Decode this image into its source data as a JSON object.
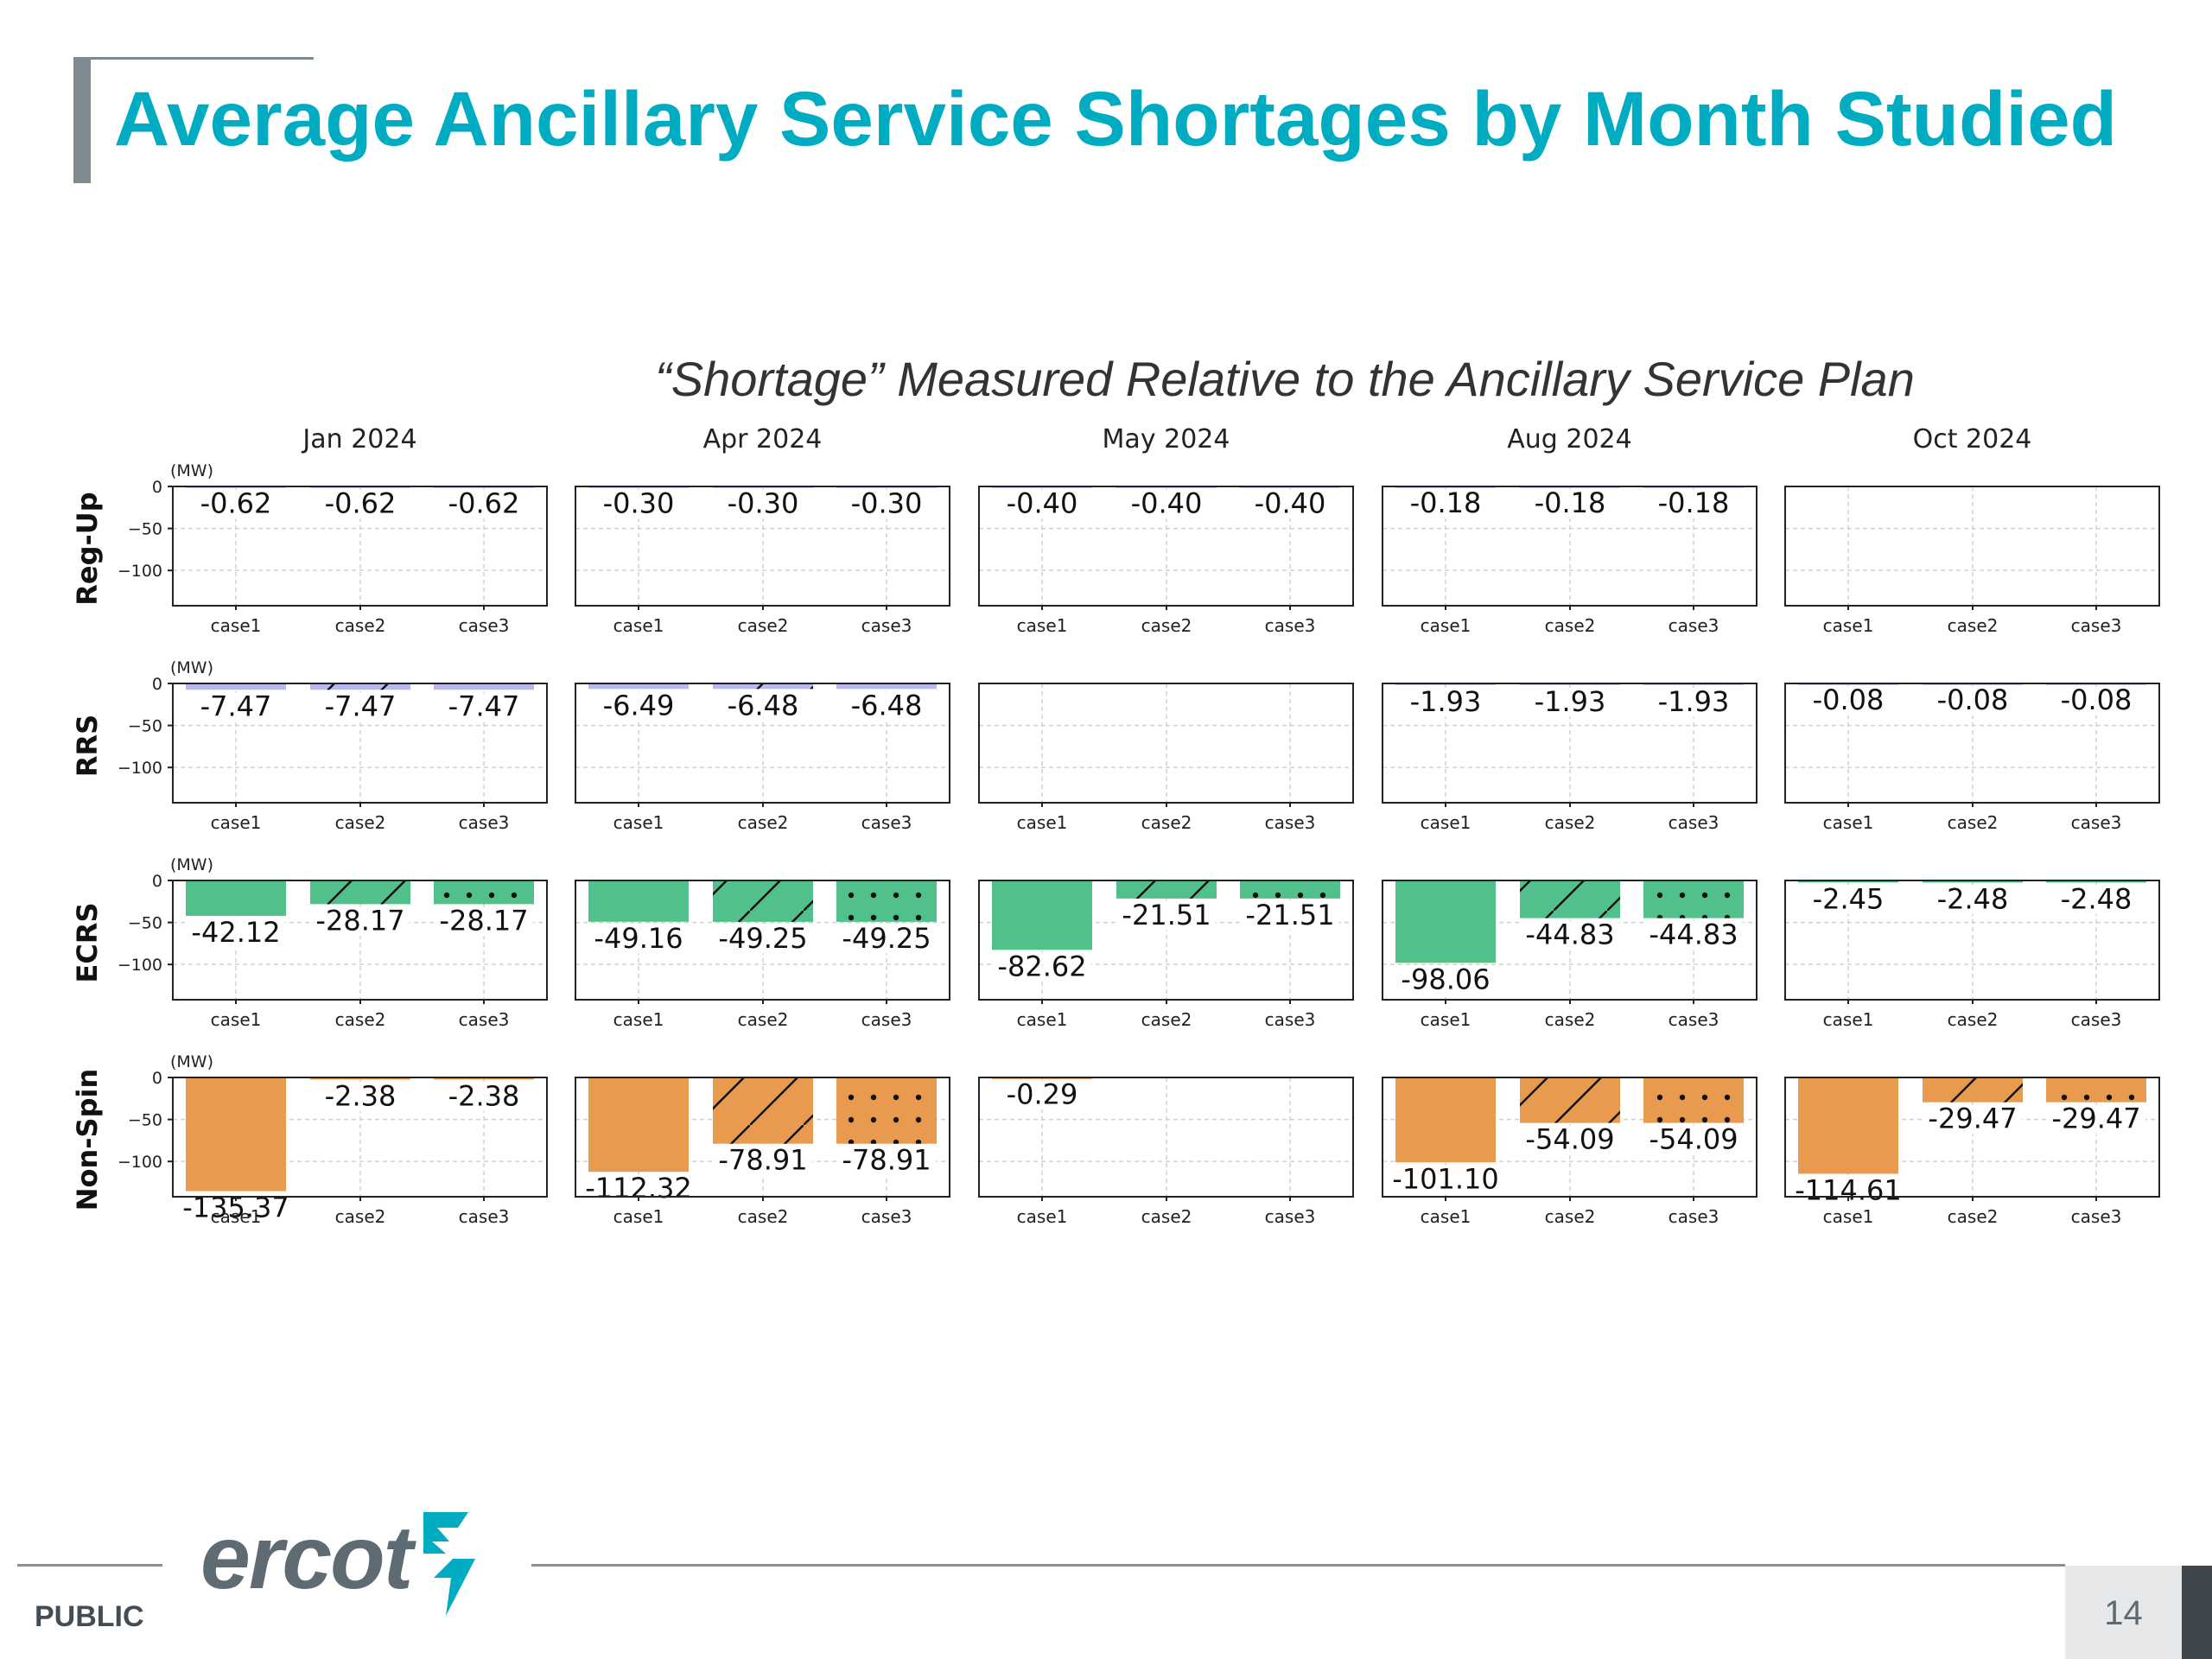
{
  "slide": {
    "title": "Average Ancillary Service Shortages by Month Studied",
    "footer_label": "PUBLIC",
    "page_number": "14",
    "logo_text": "ercot"
  },
  "colors": {
    "title": "#00acc1",
    "ecrs_bar": "#52c08a",
    "nonspin_bar": "#e89a4e",
    "small_bar": "#b9b9f0",
    "grid": "#d0d0d0"
  },
  "chart_data": {
    "type": "bar",
    "title": "“Shortage” Measured Relative to the Ancillary Service Plan",
    "months": [
      "Jan 2024",
      "Apr 2024",
      "May 2024",
      "Aug 2024",
      "Oct 2024"
    ],
    "categories": [
      "case1",
      "case2",
      "case3"
    ],
    "unit_label": "(MW)",
    "yticks": [
      0,
      -50,
      -100
    ],
    "ylim": [
      -142,
      0
    ],
    "grid": true,
    "case_patterns": [
      "solid",
      "hatch",
      "dots"
    ],
    "rows": [
      {
        "name": "Reg-Up",
        "color_key": "small_bar",
        "values": [
          [
            -0.62,
            -0.62,
            -0.62
          ],
          [
            -0.3,
            -0.3,
            -0.3
          ],
          [
            -0.4,
            -0.4,
            -0.4
          ],
          [
            -0.18,
            -0.18,
            -0.18
          ],
          [
            null,
            null,
            null
          ]
        ],
        "labels": [
          [
            "-0.62",
            "-0.62",
            "-0.62"
          ],
          [
            "-0.30",
            "-0.30",
            "-0.30"
          ],
          [
            "-0.40",
            "-0.40",
            "-0.40"
          ],
          [
            "-0.18",
            "-0.18",
            "-0.18"
          ],
          [
            "",
            "",
            ""
          ]
        ]
      },
      {
        "name": "RRS",
        "color_key": "small_bar",
        "values": [
          [
            -7.47,
            -7.47,
            -7.47
          ],
          [
            -6.49,
            -6.48,
            -6.48
          ],
          [
            null,
            null,
            null
          ],
          [
            -1.93,
            -1.93,
            -1.93
          ],
          [
            -0.08,
            -0.08,
            -0.08
          ]
        ],
        "labels": [
          [
            "-7.47",
            "-7.47",
            "-7.47"
          ],
          [
            "-6.49",
            "-6.48",
            "-6.48"
          ],
          [
            "",
            "",
            ""
          ],
          [
            "-1.93",
            "-1.93",
            "-1.93"
          ],
          [
            "-0.08",
            "-0.08",
            "-0.08"
          ]
        ]
      },
      {
        "name": "ECRS",
        "color_key": "ecrs_bar",
        "values": [
          [
            -42.12,
            -28.17,
            -28.17
          ],
          [
            -49.16,
            -49.25,
            -49.25
          ],
          [
            -82.62,
            -21.51,
            -21.51
          ],
          [
            -98.06,
            -44.83,
            -44.83
          ],
          [
            -2.45,
            -2.48,
            -2.48
          ]
        ],
        "labels": [
          [
            "-42.12",
            "-28.17",
            "-28.17"
          ],
          [
            "-49.16",
            "-49.25",
            "-49.25"
          ],
          [
            "-82.62",
            "-21.51",
            "-21.51"
          ],
          [
            "-98.06",
            "-44.83",
            "-44.83"
          ],
          [
            "-2.45",
            "-2.48",
            "-2.48"
          ]
        ]
      },
      {
        "name": "Non-Spin",
        "color_key": "nonspin_bar",
        "values": [
          [
            -135.37,
            -2.38,
            -2.38
          ],
          [
            -112.32,
            -78.91,
            -78.91
          ],
          [
            -0.29,
            null,
            null
          ],
          [
            -101.1,
            -54.09,
            -54.09
          ],
          [
            -114.61,
            -29.47,
            -29.47
          ]
        ],
        "labels": [
          [
            "-135.37",
            "-2.38",
            "-2.38"
          ],
          [
            "-112.32",
            "-78.91",
            "-78.91"
          ],
          [
            "-0.29",
            "",
            ""
          ],
          [
            "-101.10",
            "-54.09",
            "-54.09"
          ],
          [
            "-114.61",
            "-29.47",
            "-29.47"
          ]
        ]
      }
    ]
  }
}
